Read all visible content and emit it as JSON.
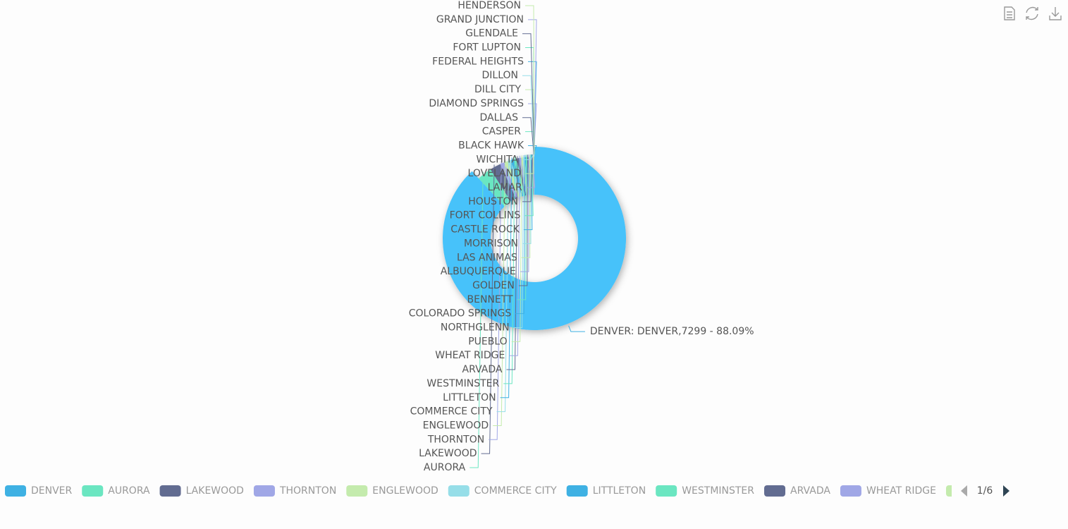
{
  "chart_data": {
    "type": "pie",
    "categories": [
      "DENVER",
      "AURORA",
      "LAKEWOOD",
      "THORNTON",
      "ENGLEWOOD",
      "COMMERCE CITY",
      "LITTLETON",
      "WESTMINSTER",
      "ARVADA",
      "WHEAT RIDGE",
      "PUEBLO",
      "NORTHGLENN",
      "COLORADO SPRINGS",
      "BENNETT",
      "GOLDEN",
      "ALBUQUERQUE",
      "LAS ANIMAS",
      "MORRISON",
      "CASTLE ROCK",
      "FORT COLLINS",
      "HOUSTON",
      "LAMAR",
      "LOVELAND",
      "WICHITA",
      "BLACK HAWK",
      "CASPER",
      "DALLAS",
      "DIAMOND SPRINGS",
      "DILL CITY",
      "DILLON",
      "FEDERAL HEIGHTS",
      "FORT LUPTON",
      "GLENDALE",
      "GRAND JUNCTION",
      "HENDERSON"
    ],
    "values": [
      7299,
      239,
      180,
      70,
      60,
      55,
      50,
      45,
      40,
      35,
      30,
      25,
      22,
      20,
      18,
      16,
      14,
      12,
      10,
      9,
      8,
      7,
      6,
      5,
      1,
      1,
      1,
      1,
      1,
      1,
      1,
      1,
      1,
      1,
      1
    ],
    "value_labels": [
      "DENVER: DENVER,7299 - 88.09%",
      null,
      null,
      null,
      null,
      null,
      null,
      null,
      null,
      null,
      null,
      null,
      null,
      null,
      null,
      null,
      null,
      null,
      null,
      null,
      null,
      null,
      null,
      null,
      null,
      null,
      null,
      null,
      null,
      null,
      null,
      null,
      null,
      null,
      null
    ],
    "colors": [
      "#3fb1e3",
      "#6be6c1",
      "#626c91",
      "#a0a7e6",
      "#c4ebad",
      "#96dee8"
    ],
    "legend_page": "1/6"
  }
}
